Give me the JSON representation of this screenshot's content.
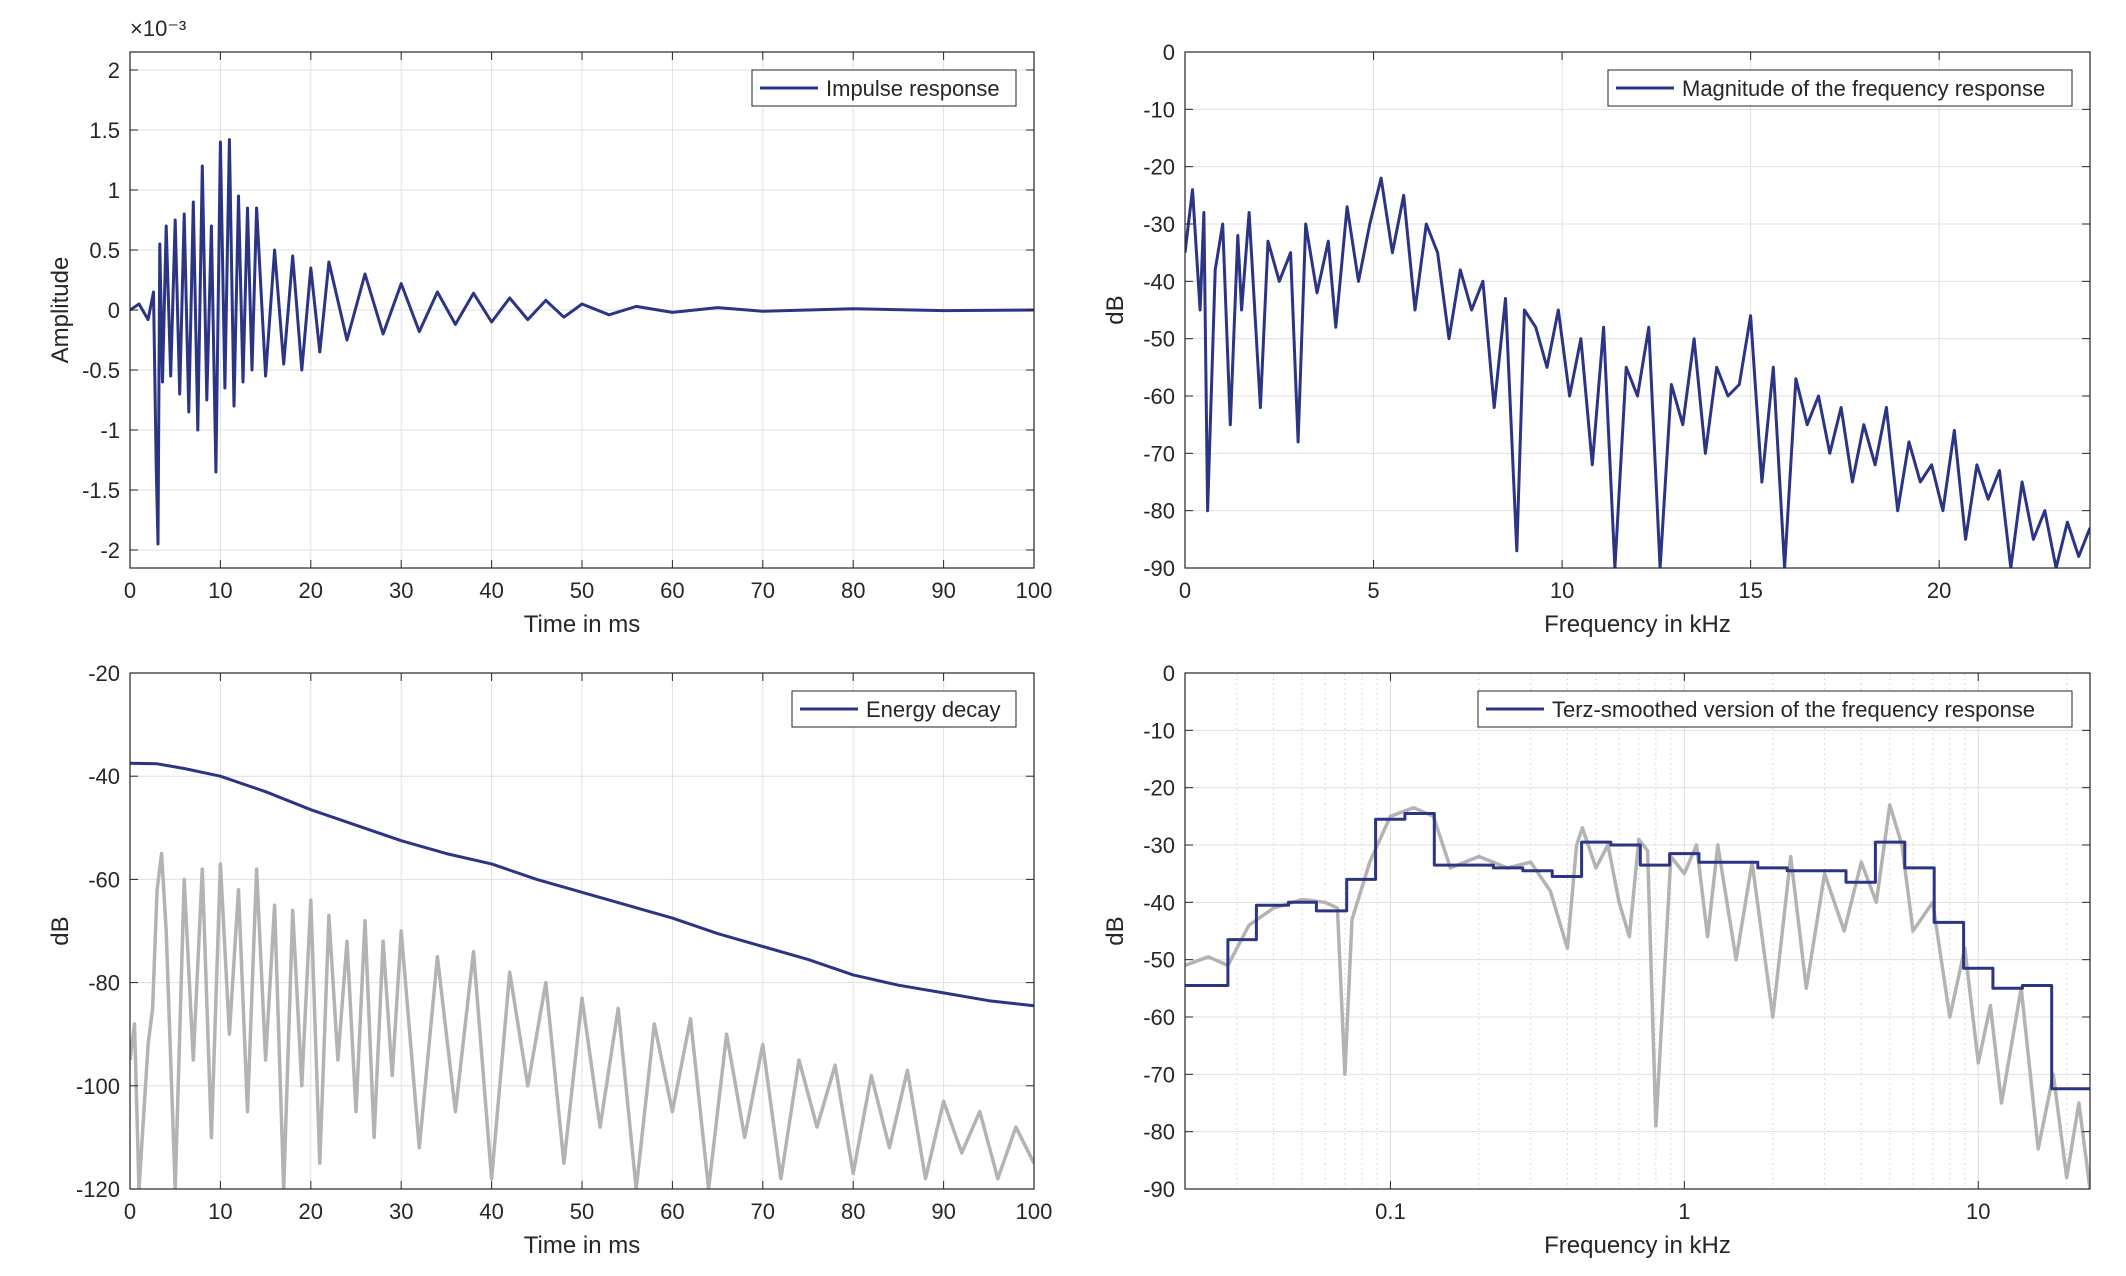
{
  "colors": {
    "series": "#2b3584",
    "secondary": "#b3b3b3",
    "grid": "#e0e0e0",
    "axes": "#262626"
  },
  "chart_data": [
    {
      "id": "impulse",
      "type": "line",
      "xlabel": "Time in ms",
      "ylabel": "Amplitude",
      "exponent_label": "×10⁻³",
      "xlim": [
        0,
        100
      ],
      "ylim": [
        -2.15,
        2.15
      ],
      "xticks": [
        0,
        10,
        20,
        30,
        40,
        50,
        60,
        70,
        80,
        90,
        100
      ],
      "xtick_labels": [
        "0",
        "10",
        "20",
        "30",
        "40",
        "50",
        "60",
        "70",
        "80",
        "90",
        "100"
      ],
      "yticks": [
        -2,
        -1.5,
        -1,
        -0.5,
        0,
        0.5,
        1,
        1.5,
        2
      ],
      "ytick_labels": [
        "-2",
        "-1.5",
        "-1",
        "-0.5",
        "0",
        "0.5",
        "1",
        "1.5",
        "2"
      ],
      "grid": true,
      "legend": "top-right",
      "series": [
        {
          "name": "Impulse response",
          "x": [
            0,
            1,
            2,
            2.6,
            2.9,
            3.1,
            3.3,
            3.6,
            4,
            4.5,
            5,
            5.5,
            6,
            6.5,
            7,
            7.5,
            8,
            8.5,
            9,
            9.5,
            10,
            10.5,
            11,
            11.5,
            12,
            12.5,
            13,
            13.5,
            14,
            15,
            16,
            17,
            18,
            19,
            20,
            21,
            22,
            24,
            26,
            28,
            30,
            32,
            34,
            36,
            38,
            40,
            42,
            44,
            46,
            48,
            50,
            53,
            56,
            60,
            65,
            70,
            80,
            90,
            100
          ],
          "values": [
            0,
            0.05,
            -0.08,
            0.15,
            -1.3,
            -1.95,
            0.55,
            -0.6,
            0.7,
            -0.55,
            0.75,
            -0.7,
            0.8,
            -0.85,
            0.9,
            -1.0,
            1.2,
            -0.75,
            0.7,
            -1.35,
            1.4,
            -0.65,
            1.42,
            -0.8,
            0.95,
            -0.6,
            0.85,
            -0.5,
            0.85,
            -0.55,
            0.5,
            -0.45,
            0.45,
            -0.5,
            0.35,
            -0.35,
            0.4,
            -0.25,
            0.3,
            -0.2,
            0.22,
            -0.18,
            0.15,
            -0.12,
            0.14,
            -0.1,
            0.1,
            -0.08,
            0.08,
            -0.06,
            0.05,
            -0.04,
            0.03,
            -0.02,
            0.02,
            -0.01,
            0.01,
            -0.005,
            0
          ]
        }
      ]
    },
    {
      "id": "magnitude",
      "type": "line",
      "xlabel": "Frequency in kHz",
      "ylabel": "dB",
      "xlim": [
        0,
        24
      ],
      "ylim": [
        -90,
        0
      ],
      "xticks": [
        0,
        5,
        10,
        15,
        20
      ],
      "xtick_labels": [
        "0",
        "5",
        "10",
        "15",
        "20"
      ],
      "yticks": [
        0,
        -10,
        -20,
        -30,
        -40,
        -50,
        -60,
        -70,
        -80,
        -90
      ],
      "ytick_labels": [
        "0",
        "-10",
        "-20",
        "-30",
        "-40",
        "-50",
        "-60",
        "-70",
        "-80",
        "-90"
      ],
      "grid": true,
      "legend": "top-right",
      "series": [
        {
          "name": "Magnitude of the frequency response",
          "x": [
            0,
            0.2,
            0.4,
            0.5,
            0.6,
            0.8,
            1.0,
            1.2,
            1.4,
            1.5,
            1.7,
            2.0,
            2.2,
            2.5,
            2.8,
            3.0,
            3.2,
            3.5,
            3.8,
            4.0,
            4.3,
            4.6,
            4.9,
            5.2,
            5.5,
            5.8,
            6.1,
            6.4,
            6.7,
            7.0,
            7.3,
            7.6,
            7.9,
            8.2,
            8.5,
            8.8,
            9.0,
            9.3,
            9.6,
            9.9,
            10.2,
            10.5,
            10.8,
            11.1,
            11.4,
            11.7,
            12.0,
            12.3,
            12.6,
            12.9,
            13.2,
            13.5,
            13.8,
            14.1,
            14.4,
            14.7,
            15.0,
            15.3,
            15.6,
            15.9,
            16.2,
            16.5,
            16.8,
            17.1,
            17.4,
            17.7,
            18.0,
            18.3,
            18.6,
            18.9,
            19.2,
            19.5,
            19.8,
            20.1,
            20.4,
            20.7,
            21.0,
            21.3,
            21.6,
            21.9,
            22.2,
            22.5,
            22.8,
            23.1,
            23.4,
            23.7,
            24.0
          ],
          "values": [
            -35,
            -24,
            -45,
            -28,
            -80,
            -38,
            -30,
            -65,
            -32,
            -45,
            -28,
            -62,
            -33,
            -40,
            -35,
            -68,
            -30,
            -42,
            -33,
            -48,
            -27,
            -40,
            -30,
            -22,
            -35,
            -25,
            -45,
            -30,
            -35,
            -50,
            -38,
            -45,
            -40,
            -62,
            -43,
            -87,
            -45,
            -48,
            -55,
            -45,
            -60,
            -50,
            -72,
            -48,
            -90,
            -55,
            -60,
            -48,
            -90,
            -58,
            -65,
            -50,
            -70,
            -55,
            -60,
            -58,
            -46,
            -75,
            -55,
            -90,
            -57,
            -65,
            -60,
            -70,
            -62,
            -75,
            -65,
            -72,
            -62,
            -80,
            -68,
            -75,
            -72,
            -80,
            -66,
            -85,
            -72,
            -78,
            -73,
            -90,
            -75,
            -85,
            -80,
            -90,
            -82,
            -88,
            -83
          ]
        }
      ]
    },
    {
      "id": "energy",
      "type": "line",
      "xlabel": "Time in ms",
      "ylabel": "dB",
      "xlim": [
        0,
        100
      ],
      "ylim": [
        -120,
        -20
      ],
      "xticks": [
        0,
        10,
        20,
        30,
        40,
        50,
        60,
        70,
        80,
        90,
        100
      ],
      "xtick_labels": [
        "0",
        "10",
        "20",
        "30",
        "40",
        "50",
        "60",
        "70",
        "80",
        "90",
        "100"
      ],
      "yticks": [
        -20,
        -40,
        -60,
        -80,
        -100,
        -120
      ],
      "ytick_labels": [
        "-20",
        "-40",
        "-60",
        "-80",
        "-100",
        "-120"
      ],
      "grid": true,
      "legend": "top-right",
      "series": [
        {
          "name": "Energy decay",
          "x": [
            0,
            3,
            6,
            10,
            15,
            20,
            25,
            30,
            35,
            40,
            45,
            50,
            55,
            60,
            65,
            70,
            75,
            80,
            85,
            90,
            95,
            100
          ],
          "values": [
            -37.5,
            -37.6,
            -38.5,
            -40,
            -43,
            -46.5,
            -49.5,
            -52.5,
            -55,
            -57,
            -60,
            -62.5,
            -65,
            -67.5,
            -70.5,
            -73,
            -75.5,
            -78.5,
            -80.5,
            -82,
            -83.5,
            -84.5
          ]
        },
        {
          "x": [
            0,
            0.5,
            1,
            2,
            2.5,
            3,
            3.5,
            4,
            5,
            6,
            7,
            8,
            9,
            10,
            11,
            12,
            13,
            14,
            15,
            16,
            17,
            18,
            19,
            20,
            21,
            22,
            23,
            24,
            25,
            26,
            27,
            28,
            29,
            30,
            32,
            34,
            36,
            38,
            40,
            42,
            44,
            46,
            48,
            50,
            52,
            54,
            56,
            58,
            60,
            62,
            64,
            66,
            68,
            70,
            72,
            74,
            76,
            78,
            80,
            82,
            84,
            86,
            88,
            90,
            92,
            94,
            96,
            98,
            100
          ],
          "values": [
            -95,
            -88,
            -120,
            -92,
            -85,
            -62,
            -55,
            -70,
            -120,
            -60,
            -95,
            -58,
            -110,
            -57,
            -90,
            -62,
            -105,
            -58,
            -95,
            -65,
            -120,
            -66,
            -100,
            -64,
            -115,
            -67,
            -95,
            -72,
            -105,
            -68,
            -110,
            -72,
            -98,
            -70,
            -112,
            -75,
            -105,
            -74,
            -118,
            -78,
            -100,
            -80,
            -115,
            -83,
            -108,
            -85,
            -120,
            -88,
            -105,
            -87,
            -120,
            -90,
            -110,
            -92,
            -118,
            -95,
            -108,
            -96,
            -117,
            -98,
            -112,
            -97,
            -118,
            -103,
            -113,
            -105,
            -118,
            -108,
            -115
          ]
        }
      ]
    },
    {
      "id": "terz",
      "type": "line",
      "xscale": "log",
      "xlabel": "Frequency in kHz",
      "ylabel": "dB",
      "xlim": [
        0.02,
        24
      ],
      "ylim": [
        -90,
        0
      ],
      "xticks": [
        0.1,
        1,
        10
      ],
      "xtick_labels": [
        "0.1",
        "1",
        "10"
      ],
      "yticks": [
        0,
        -10,
        -20,
        -30,
        -40,
        -50,
        -60,
        -70,
        -80,
        -90
      ],
      "ytick_labels": [
        "0",
        "-10",
        "-20",
        "-30",
        "-40",
        "-50",
        "-60",
        "-70",
        "-80",
        "-90"
      ],
      "grid": true,
      "legend": "top-right",
      "series": [
        {
          "name": "Terz-smoothed version of the frequency response",
          "x": [
            0.02,
            0.028,
            0.028,
            0.035,
            0.035,
            0.045,
            0.045,
            0.056,
            0.056,
            0.071,
            0.071,
            0.089,
            0.089,
            0.112,
            0.112,
            0.141,
            0.141,
            0.178,
            0.178,
            0.224,
            0.224,
            0.282,
            0.282,
            0.355,
            0.355,
            0.447,
            0.447,
            0.562,
            0.562,
            0.708,
            0.708,
            0.891,
            0.891,
            1.122,
            1.122,
            1.413,
            1.413,
            1.778,
            1.778,
            2.239,
            2.239,
            2.818,
            2.818,
            3.548,
            3.548,
            4.467,
            4.467,
            5.623,
            5.623,
            7.079,
            7.079,
            8.913,
            8.913,
            11.22,
            11.22,
            14.13,
            14.13,
            17.78,
            17.78,
            24
          ],
          "values": [
            -54.5,
            -54.5,
            -46.5,
            -46.5,
            -40.5,
            -40.5,
            -40,
            -40,
            -41.5,
            -41.5,
            -36,
            -36,
            -25.5,
            -25.5,
            -24.5,
            -24.5,
            -33.5,
            -33.5,
            -33.5,
            -33.5,
            -34,
            -34,
            -34.5,
            -34.5,
            -35.5,
            -35.5,
            -29.5,
            -29.5,
            -30,
            -30,
            -33.5,
            -33.5,
            -31.5,
            -31.5,
            -33,
            -33,
            -33,
            -33,
            -34,
            -34,
            -34.5,
            -34.5,
            -34.5,
            -34.5,
            -36.5,
            -36.5,
            -29.5,
            -29.5,
            -34,
            -34,
            -43.5,
            -43.5,
            -51.5,
            -51.5,
            -55,
            -55,
            -54.5,
            -54.5,
            -72.5,
            -72.5
          ]
        },
        {
          "x": [
            0.02,
            0.024,
            0.028,
            0.033,
            0.04,
            0.05,
            0.06,
            0.066,
            0.07,
            0.074,
            0.085,
            0.1,
            0.12,
            0.14,
            0.16,
            0.2,
            0.25,
            0.3,
            0.35,
            0.4,
            0.43,
            0.45,
            0.5,
            0.55,
            0.6,
            0.65,
            0.7,
            0.75,
            0.8,
            0.9,
            1.0,
            1.1,
            1.2,
            1.3,
            1.5,
            1.7,
            2.0,
            2.3,
            2.6,
            3.0,
            3.5,
            4.0,
            4.5,
            5.0,
            5.5,
            6.0,
            7.0,
            8.0,
            9.0,
            10.0,
            11.0,
            12.0,
            14.0,
            16.0,
            18.0,
            20.0,
            22.0,
            24.0
          ],
          "values": [
            -51,
            -49.5,
            -51,
            -44,
            -41,
            -39.5,
            -40,
            -41,
            -70,
            -43,
            -33,
            -25,
            -23.5,
            -25,
            -34,
            -32,
            -34,
            -33,
            -38,
            -48,
            -30,
            -27,
            -34,
            -30,
            -40,
            -46,
            -29,
            -31,
            -79,
            -32,
            -35,
            -30,
            -46,
            -30,
            -50,
            -33,
            -60,
            -32,
            -55,
            -35,
            -45,
            -33,
            -40,
            -23,
            -30,
            -45,
            -40,
            -60,
            -48,
            -68,
            -58,
            -75,
            -55,
            -83,
            -70,
            -88,
            -75,
            -90
          ]
        }
      ]
    }
  ]
}
